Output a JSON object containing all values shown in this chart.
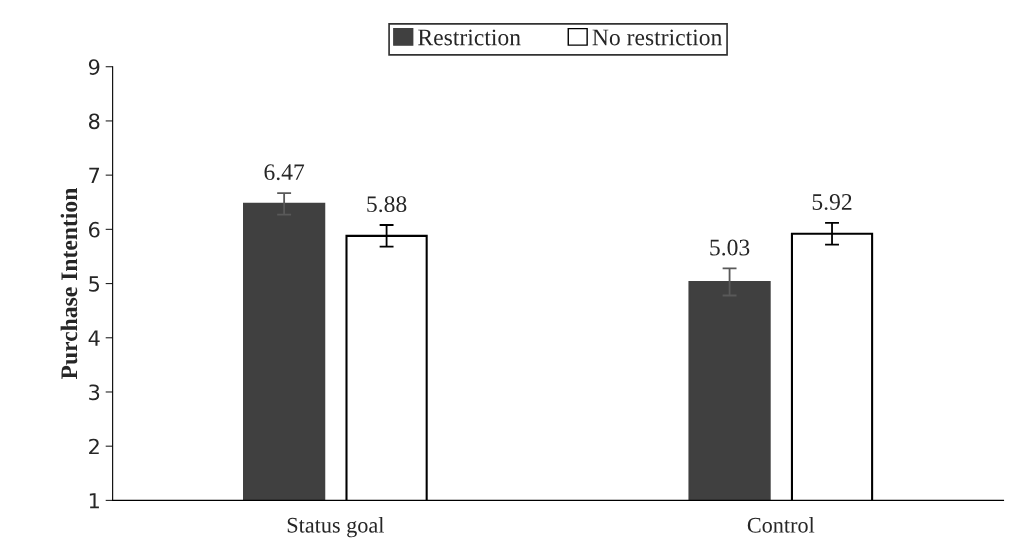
{
  "chart_data": {
    "type": "bar",
    "ylabel": "Purchase Intention",
    "categories": [
      "Status goal",
      "Control"
    ],
    "series": [
      {
        "name": "Restriction",
        "color": "#404040",
        "values": [
          6.47,
          5.03
        ],
        "errors": [
          0.2,
          0.25
        ]
      },
      {
        "name": "No restriction",
        "color": "#ffffff",
        "values": [
          5.88,
          5.92
        ],
        "errors": [
          0.2,
          0.2
        ]
      }
    ],
    "ylim": [
      1,
      9
    ],
    "yticks": [
      1,
      2,
      3,
      4,
      5,
      6,
      7,
      8,
      9
    ],
    "data_labels": true,
    "legend": "top",
    "grid": false
  }
}
